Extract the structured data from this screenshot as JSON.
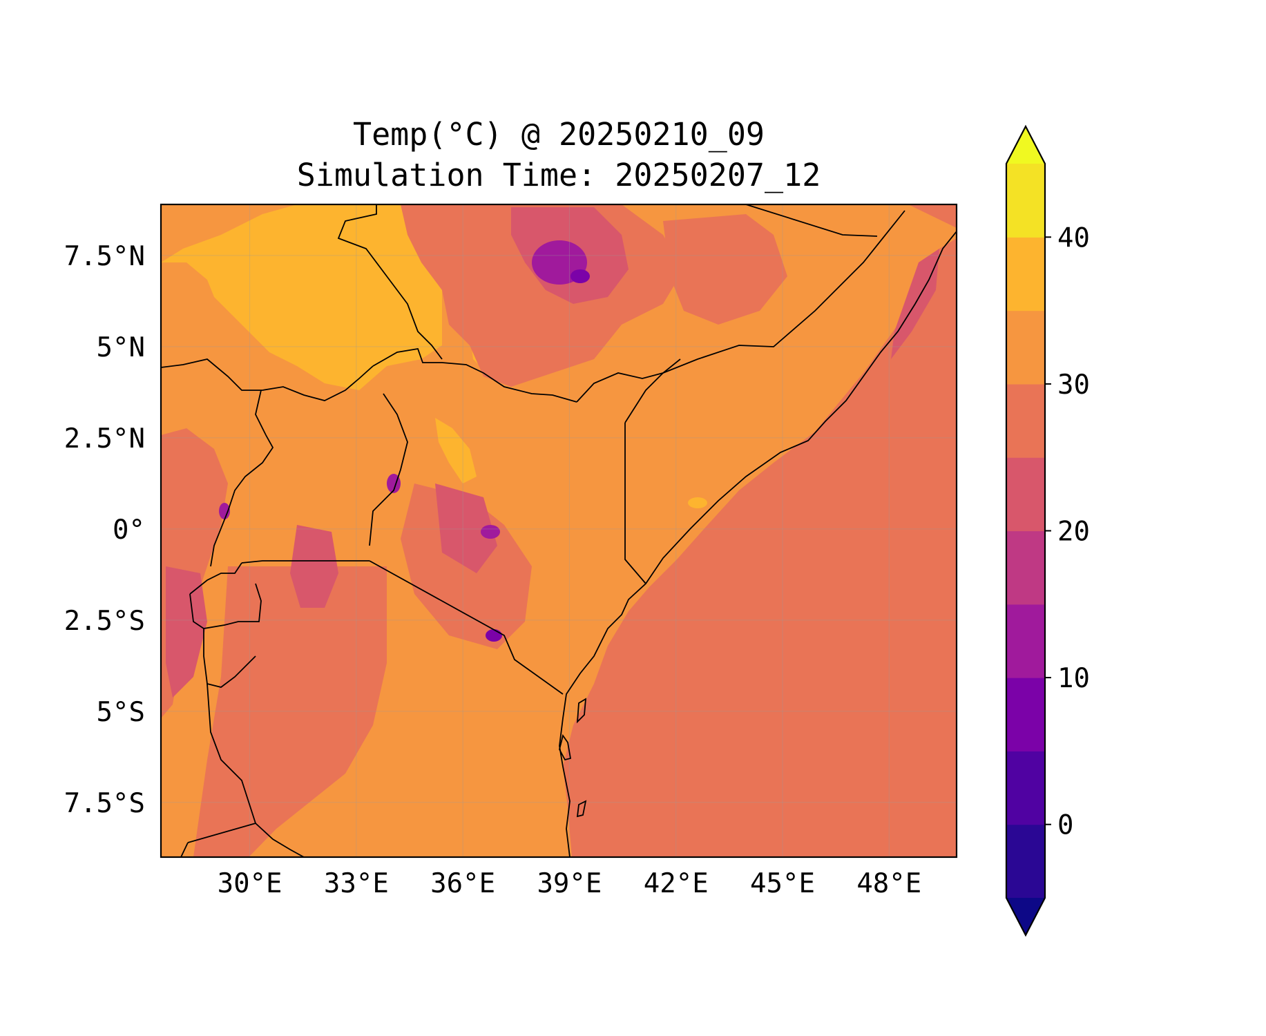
{
  "title_line1": "Temp(°C) @ 20250210_09",
  "title_line2": "Simulation Time: 20250207_12",
  "map": {
    "lon_range": [
      27.5,
      49.9
    ],
    "lat_range": [
      -9.0,
      8.9
    ],
    "x_ticks": [
      {
        "value": 30,
        "label": "30°E"
      },
      {
        "value": 33,
        "label": "33°E"
      },
      {
        "value": 36,
        "label": "36°E"
      },
      {
        "value": 39,
        "label": "39°E"
      },
      {
        "value": 42,
        "label": "42°E"
      },
      {
        "value": 45,
        "label": "45°E"
      },
      {
        "value": 48,
        "label": "48°E"
      }
    ],
    "y_ticks": [
      {
        "value": 7.5,
        "label": "7.5°N"
      },
      {
        "value": 5,
        "label": "5°N"
      },
      {
        "value": 2.5,
        "label": "2.5°N"
      },
      {
        "value": 0,
        "label": "0°"
      },
      {
        "value": -2.5,
        "label": "2.5°S"
      },
      {
        "value": -5,
        "label": "5°S"
      },
      {
        "value": -7.5,
        "label": "7.5°S"
      }
    ],
    "gridlines": true
  },
  "colorbar": {
    "vmin": -5,
    "vmax": 45,
    "extend": "both",
    "tick_values": [
      0,
      10,
      20,
      30,
      40
    ],
    "tick_labels": [
      "0",
      "10",
      "20",
      "30",
      "40"
    ],
    "levels": [
      {
        "from": -5,
        "to": 0,
        "color": "#2a0794"
      },
      {
        "from": 0,
        "to": 5,
        "color": "#5002a2"
      },
      {
        "from": 5,
        "to": 10,
        "color": "#7b02a8"
      },
      {
        "from": 10,
        "to": 15,
        "color": "#a01a9c"
      },
      {
        "from": 15,
        "to": 20,
        "color": "#bf3984"
      },
      {
        "from": 20,
        "to": 25,
        "color": "#d8576b"
      },
      {
        "from": 25,
        "to": 30,
        "color": "#e97456"
      },
      {
        "from": 30,
        "to": 35,
        "color": "#f69640"
      },
      {
        "from": 35,
        "to": 40,
        "color": "#fdb42f"
      },
      {
        "from": 40,
        "to": 45,
        "color": "#f4e225"
      }
    ],
    "under_color": "#0d0887",
    "over_color": "#f0f921"
  }
}
